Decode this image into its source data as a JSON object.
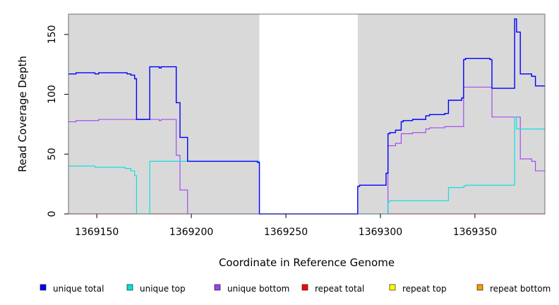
{
  "chart_data": {
    "type": "line",
    "title": "",
    "xlabel": "Coordinate in Reference Genome",
    "ylabel": "Read Coverage Depth",
    "xlim": [
      1369135,
      1369387
    ],
    "ylim": [
      0,
      167
    ],
    "x_ticks": [
      1369150,
      1369200,
      1369250,
      1369300,
      1369350
    ],
    "y_ticks": [
      0,
      50,
      100,
      150
    ],
    "grid": false,
    "step": true,
    "shaded_regions": [
      {
        "x": [
          1369135,
          1369236
        ],
        "color": "#d9d9d9"
      },
      {
        "x": [
          1369288,
          1369387
        ],
        "color": "#d9d9d9"
      }
    ],
    "legend_position": "bottom",
    "series": [
      {
        "name": "unique total",
        "color": "#0000ff",
        "points": [
          [
            1369135,
            117
          ],
          [
            1369139,
            118
          ],
          [
            1369149,
            117
          ],
          [
            1369151,
            118
          ],
          [
            1369166,
            117
          ],
          [
            1369168,
            116
          ],
          [
            1369170,
            113
          ],
          [
            1369171,
            79
          ],
          [
            1369178,
            123
          ],
          [
            1369183,
            122
          ],
          [
            1369184,
            123
          ],
          [
            1369192,
            93
          ],
          [
            1369194,
            64
          ],
          [
            1369198,
            44
          ],
          [
            1369235,
            43
          ],
          [
            1369236,
            0
          ],
          [
            1369288,
            23
          ],
          [
            1369289,
            24
          ],
          [
            1369303,
            34
          ],
          [
            1369304,
            67
          ],
          [
            1369305,
            68
          ],
          [
            1369308,
            70
          ],
          [
            1369311,
            77
          ],
          [
            1369312,
            78
          ],
          [
            1369317,
            79
          ],
          [
            1369324,
            82
          ],
          [
            1369326,
            83
          ],
          [
            1369334,
            84
          ],
          [
            1369336,
            95
          ],
          [
            1369343,
            97
          ],
          [
            1369344,
            129
          ],
          [
            1369345,
            130
          ],
          [
            1369358,
            129
          ],
          [
            1369359,
            105
          ],
          [
            1369371,
            163
          ],
          [
            1369372,
            152
          ],
          [
            1369374,
            117
          ],
          [
            1369380,
            115
          ],
          [
            1369382,
            107
          ],
          [
            1369387,
            107
          ]
        ]
      },
      {
        "name": "unique top",
        "color": "#00e0e0",
        "points": [
          [
            1369135,
            40
          ],
          [
            1369149,
            39
          ],
          [
            1369165,
            38
          ],
          [
            1369168,
            36
          ],
          [
            1369170,
            32
          ],
          [
            1369171,
            0
          ],
          [
            1369178,
            44
          ],
          [
            1369236,
            0
          ],
          [
            1369303,
            0
          ],
          [
            1369304,
            10
          ],
          [
            1369305,
            11
          ],
          [
            1369336,
            22
          ],
          [
            1369344,
            23
          ],
          [
            1369345,
            24
          ],
          [
            1369371,
            81
          ],
          [
            1369372,
            71
          ],
          [
            1369387,
            71
          ]
        ]
      },
      {
        "name": "unique bottom",
        "color": "#a040f0",
        "points": [
          [
            1369135,
            77
          ],
          [
            1369139,
            78
          ],
          [
            1369151,
            79
          ],
          [
            1369183,
            78
          ],
          [
            1369184,
            79
          ],
          [
            1369192,
            49
          ],
          [
            1369194,
            20
          ],
          [
            1369198,
            0
          ],
          [
            1369303,
            0
          ],
          [
            1369304,
            57
          ],
          [
            1369308,
            59
          ],
          [
            1369311,
            67
          ],
          [
            1369317,
            68
          ],
          [
            1369324,
            71
          ],
          [
            1369326,
            72
          ],
          [
            1369334,
            73
          ],
          [
            1369344,
            106
          ],
          [
            1369359,
            81
          ],
          [
            1369374,
            46
          ],
          [
            1369380,
            44
          ],
          [
            1369382,
            36
          ],
          [
            1369387,
            36
          ]
        ]
      },
      {
        "name": "repeat total",
        "color": "#ff0000",
        "points": [
          [
            1369135,
            0
          ],
          [
            1369387,
            0
          ]
        ]
      },
      {
        "name": "repeat top",
        "color": "#ffff00",
        "points": [
          [
            1369135,
            0
          ],
          [
            1369387,
            0
          ]
        ]
      },
      {
        "name": "repeat bottom",
        "color": "#ff9900",
        "points": [
          [
            1369135,
            0
          ],
          [
            1369387,
            0
          ]
        ]
      }
    ]
  }
}
